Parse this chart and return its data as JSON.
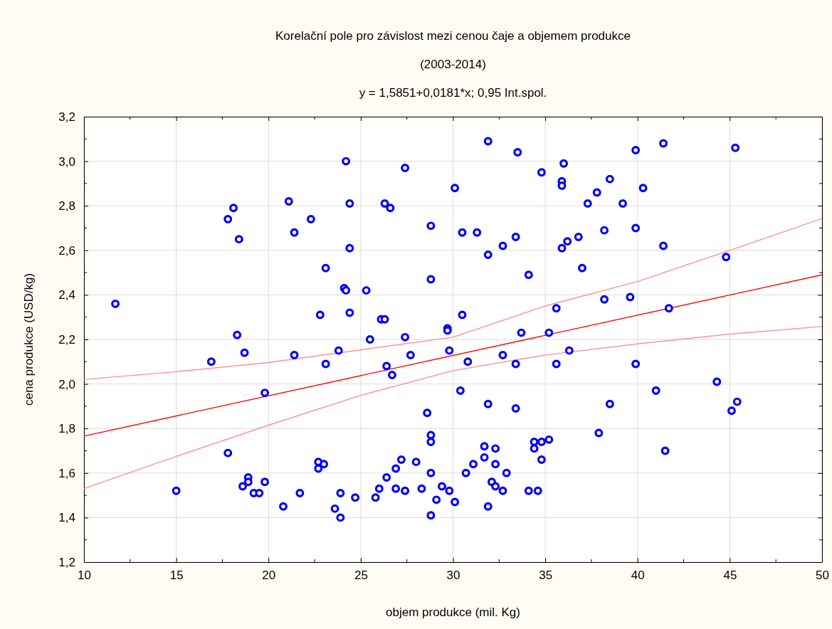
{
  "chart_data": {
    "type": "scatter",
    "title": "Korelační pole pro závislost mezi cenou čaje a objemem produkce",
    "subtitle": "(2003-2014)",
    "annotations": [
      "y = 1,5851+0,0181*x; 0,95 Int.spol."
    ],
    "xlabel": "objem produkce (mil. Kg)",
    "ylabel": "cena produkce (USD/kg)",
    "xlim": [
      10,
      50
    ],
    "xticks": [
      10,
      15,
      20,
      25,
      30,
      35,
      40,
      45,
      50
    ],
    "ylim": [
      1.2,
      3.2
    ],
    "yticks": [
      {
        "value": 1.2,
        "label": "1,2"
      },
      {
        "value": 1.4,
        "label": "1,4"
      },
      {
        "value": 1.6,
        "label": "1,6"
      },
      {
        "value": 1.8,
        "label": "1,8"
      },
      {
        "value": 2.0,
        "label": "2,0"
      },
      {
        "value": 2.2,
        "label": "2,2"
      },
      {
        "value": 2.4,
        "label": "2,4"
      },
      {
        "value": 2.6,
        "label": "2,6"
      },
      {
        "value": 2.8,
        "label": "2,8"
      },
      {
        "value": 3.0,
        "label": "3,0"
      },
      {
        "value": 3.2,
        "label": "3,2"
      }
    ],
    "grid": true,
    "series": [
      {
        "type": "line",
        "color": "#ff9090",
        "line_style": "solid",
        "x": [
          10,
          15,
          20,
          25,
          30,
          35,
          40,
          45,
          50
        ],
        "values": [
          2.02,
          2.055,
          2.096,
          2.153,
          2.21,
          2.35,
          2.46,
          2.6,
          2.743
        ]
      },
      {
        "type": "line",
        "color": "#ff9090",
        "line_style": "solid",
        "x": [
          10,
          15,
          20,
          25,
          30,
          35,
          40,
          45,
          50
        ],
        "values": [
          1.53,
          1.675,
          1.815,
          1.949,
          2.06,
          2.13,
          2.18,
          2.224,
          2.258
        ]
      },
      {
        "type": "line",
        "color": "#ff0000",
        "line_style": "solid",
        "x": [
          10,
          50
        ],
        "values": [
          1.766,
          2.49
        ]
      },
      {
        "color": "#0000ff",
        "marker": "circle",
        "x": [
          24.2,
          27.4,
          30.1,
          21.1,
          18.1,
          24.4,
          26.3,
          26.6,
          17.8,
          22.3,
          21.4,
          18.4,
          28.8,
          24.4,
          23.1,
          28.8,
          24.1,
          24.2,
          25.3,
          11.7,
          22.8,
          24.4,
          26.1,
          26.3,
          18.3,
          29.7,
          29.7,
          25.5,
          27.4,
          31.9,
          33.5,
          34.8,
          36.0,
          35.9,
          35.9,
          39.9,
          41.4,
          45.3,
          38.5,
          37.8,
          37.3,
          39.2,
          40.3,
          30.5,
          31.3,
          31.9,
          32.7,
          33.4,
          34.1,
          35.9,
          36.2,
          36.8,
          37.0,
          38.2,
          39.9,
          41.4,
          44.8,
          30.5,
          35.6,
          38.2,
          39.6,
          41.7,
          33.7,
          35.2,
          29.8,
          30.8,
          32.7,
          33.4,
          35.6,
          36.3,
          39.9,
          30.4,
          31.9,
          33.4,
          38.5,
          41.0,
          44.3,
          45.1,
          45.4,
          37.9,
          41.5,
          31.7,
          32.3,
          31.7,
          31.1,
          32.3,
          30.7,
          32.9,
          32.1,
          32.3,
          32.7,
          34.1,
          34.6,
          29.8,
          30.1,
          31.9,
          34.4,
          34.8,
          34.4,
          34.8,
          35.2,
          16.9,
          18.7,
          21.4,
          23.1,
          23.8,
          26.4,
          26.7,
          27.7,
          19.8,
          17.8,
          15.0,
          18.9,
          18.9,
          18.6,
          19.2,
          19.5,
          19.8,
          20.8,
          21.7,
          22.7,
          22.7,
          23.0,
          23.9,
          23.6,
          23.9,
          24.7,
          25.8,
          26.0,
          26.4,
          26.9,
          27.2,
          26.9,
          27.4,
          28.0,
          28.3,
          28.6,
          28.8,
          28.8,
          28.8,
          29.1,
          28.8,
          29.4
        ],
        "values": [
          3.0,
          2.97,
          2.88,
          2.82,
          2.79,
          2.81,
          2.81,
          2.79,
          2.74,
          2.74,
          2.68,
          2.65,
          2.71,
          2.61,
          2.52,
          2.47,
          2.43,
          2.42,
          2.42,
          2.36,
          2.31,
          2.32,
          2.29,
          2.29,
          2.22,
          2.25,
          2.24,
          2.2,
          2.21,
          3.09,
          3.04,
          2.95,
          2.99,
          2.91,
          2.89,
          3.05,
          3.08,
          3.06,
          2.92,
          2.86,
          2.81,
          2.81,
          2.88,
          2.68,
          2.68,
          2.58,
          2.62,
          2.66,
          2.49,
          2.61,
          2.64,
          2.66,
          2.52,
          2.69,
          2.7,
          2.62,
          2.57,
          2.31,
          2.34,
          2.38,
          2.39,
          2.34,
          2.23,
          2.23,
          2.15,
          2.1,
          2.13,
          2.09,
          2.09,
          2.15,
          2.09,
          1.97,
          1.91,
          1.89,
          1.91,
          1.97,
          2.01,
          1.88,
          1.92,
          1.78,
          1.7,
          1.72,
          1.71,
          1.67,
          1.64,
          1.64,
          1.6,
          1.6,
          1.56,
          1.54,
          1.52,
          1.52,
          1.52,
          1.52,
          1.47,
          1.45,
          1.74,
          1.74,
          1.71,
          1.66,
          1.75,
          2.1,
          2.14,
          2.13,
          2.09,
          2.15,
          2.08,
          2.04,
          2.13,
          1.96,
          1.69,
          1.52,
          1.58,
          1.56,
          1.54,
          1.51,
          1.51,
          1.56,
          1.45,
          1.51,
          1.65,
          1.62,
          1.64,
          1.51,
          1.44,
          1.4,
          1.49,
          1.49,
          1.53,
          1.58,
          1.62,
          1.66,
          1.53,
          1.52,
          1.65,
          1.53,
          1.87,
          1.77,
          1.74,
          1.6,
          1.48,
          1.41,
          1.54
        ]
      }
    ]
  }
}
